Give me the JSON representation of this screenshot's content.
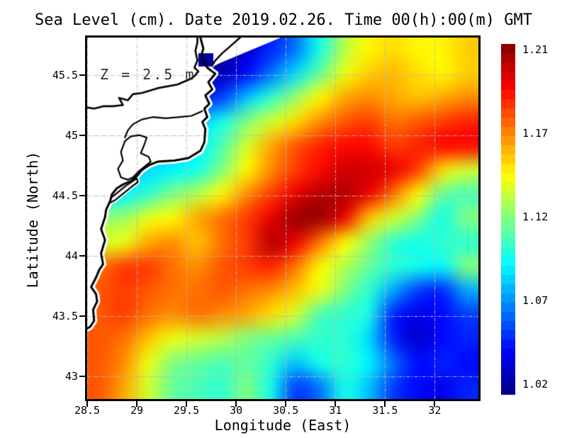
{
  "title": "Sea Level (cm). Date 2019.02.26. Time 00(h):00(m) GMT",
  "annotation": "Z = 2.5 m",
  "axes": {
    "x": {
      "label": "Longitude (East)",
      "ticks": [
        {
          "label": "28.5",
          "value": 28.5
        },
        {
          "label": "29",
          "value": 29
        },
        {
          "label": "29.5",
          "value": 29.5
        },
        {
          "label": "30",
          "value": 30
        },
        {
          "label": "30.5",
          "value": 30.5
        },
        {
          "label": "31",
          "value": 31
        },
        {
          "label": "31.5",
          "value": 31.5
        },
        {
          "label": "32",
          "value": 32
        }
      ]
    },
    "y": {
      "label": "Latitude (North)",
      "ticks": [
        {
          "label": "45.5",
          "value": 45.5
        },
        {
          "label": "45",
          "value": 45
        },
        {
          "label": "44.5",
          "value": 44.5
        },
        {
          "label": "44",
          "value": 44
        },
        {
          "label": "43.5",
          "value": 43.5
        },
        {
          "label": "43",
          "value": 43
        }
      ]
    }
  },
  "colorbar": {
    "min": 1.02,
    "max": 1.21,
    "segments": 38,
    "ticks": [
      {
        "label": "1.21",
        "value": 1.21
      },
      {
        "label": "1.17",
        "value": 1.17
      },
      {
        "label": "1.12",
        "value": 1.12
      },
      {
        "label": "1.07",
        "value": 1.07
      },
      {
        "label": "1.02",
        "value": 1.02
      }
    ]
  },
  "colors": {
    "land": "#ffffff",
    "coastline": "#000000",
    "grid": "#b8b8b8",
    "border": "#000000",
    "river_mouth": "#0000a0",
    "annotation": "#303030"
  },
  "chart_data": {
    "type": "heatmap",
    "title": "Sea Level (cm). Date 2019.02.26. Time 00(h):00(m) GMT",
    "xlabel": "Longitude (East)",
    "ylabel": "Latitude (North)",
    "xlim": [
      28.5,
      32.44
    ],
    "ylim": [
      42.81,
      45.81
    ],
    "xticks": [
      28.5,
      29,
      29.5,
      30,
      30.5,
      31,
      31.5,
      32
    ],
    "yticks": [
      43,
      43.5,
      44,
      44.5,
      45,
      45.5
    ],
    "colormap": "jet",
    "value_range": [
      1.02,
      1.21
    ],
    "grid_lon": [
      28.5,
      28.763,
      29.025,
      29.288,
      29.551,
      29.813,
      30.076,
      30.339,
      30.601,
      30.864,
      31.127,
      31.389,
      31.652,
      31.915,
      32.177,
      32.44
    ],
    "grid_lat": [
      45.81,
      45.596,
      45.381,
      45.167,
      44.953,
      44.739,
      44.524,
      44.31,
      44.096,
      43.881,
      43.667,
      43.453,
      43.239,
      43.024,
      42.81
    ],
    "values": [
      [
        1.05,
        1.05,
        1.05,
        1.05,
        1.03,
        1.025,
        1.035,
        1.05,
        1.065,
        1.095,
        1.125,
        1.14,
        1.145,
        1.14,
        1.14,
        1.148
      ],
      [
        1.05,
        1.05,
        1.05,
        1.05,
        1.025,
        1.03,
        1.045,
        1.065,
        1.085,
        1.11,
        1.135,
        1.148,
        1.152,
        1.145,
        1.14,
        1.148
      ],
      [
        1.06,
        1.06,
        1.06,
        1.06,
        1.05,
        1.055,
        1.08,
        1.1,
        1.12,
        1.14,
        1.155,
        1.16,
        1.155,
        1.15,
        1.155,
        1.16
      ],
      [
        1.07,
        1.07,
        1.07,
        1.07,
        1.08,
        1.095,
        1.115,
        1.13,
        1.145,
        1.16,
        1.17,
        1.175,
        1.165,
        1.17,
        1.175,
        1.18
      ],
      [
        1.08,
        1.08,
        1.08,
        1.08,
        1.09,
        1.105,
        1.13,
        1.155,
        1.17,
        1.18,
        1.185,
        1.185,
        1.175,
        1.18,
        1.185,
        1.185
      ],
      [
        1.085,
        1.085,
        1.085,
        1.09,
        1.095,
        1.115,
        1.14,
        1.16,
        1.175,
        1.185,
        1.195,
        1.195,
        1.19,
        1.175,
        1.145,
        1.13
      ],
      [
        1.09,
        1.09,
        1.1,
        1.115,
        1.125,
        1.14,
        1.16,
        1.175,
        1.19,
        1.2,
        1.2,
        1.19,
        1.165,
        1.14,
        1.11,
        1.105
      ],
      [
        1.12,
        1.12,
        1.135,
        1.14,
        1.155,
        1.165,
        1.175,
        1.19,
        1.205,
        1.205,
        1.19,
        1.15,
        1.13,
        1.115,
        1.095,
        1.115
      ],
      [
        1.13,
        1.135,
        1.155,
        1.16,
        1.15,
        1.165,
        1.175,
        1.2,
        1.19,
        1.165,
        1.14,
        1.12,
        1.1,
        1.095,
        1.1,
        1.1
      ],
      [
        1.165,
        1.175,
        1.175,
        1.165,
        1.16,
        1.17,
        1.175,
        1.18,
        1.165,
        1.14,
        1.125,
        1.11,
        1.1,
        1.095,
        1.09,
        1.115
      ],
      [
        1.17,
        1.175,
        1.17,
        1.165,
        1.165,
        1.17,
        1.165,
        1.16,
        1.15,
        1.135,
        1.115,
        1.1,
        1.075,
        1.055,
        1.05,
        1.075
      ],
      [
        1.17,
        1.175,
        1.165,
        1.16,
        1.165,
        1.16,
        1.155,
        1.145,
        1.13,
        1.105,
        1.1,
        1.095,
        1.05,
        1.04,
        1.045,
        1.055
      ],
      [
        1.17,
        1.165,
        1.15,
        1.135,
        1.13,
        1.125,
        1.115,
        1.11,
        1.105,
        1.1,
        1.1,
        1.085,
        1.05,
        1.035,
        1.045,
        1.05
      ],
      [
        1.17,
        1.16,
        1.135,
        1.115,
        1.11,
        1.105,
        1.11,
        1.1,
        1.08,
        1.095,
        1.1,
        1.09,
        1.065,
        1.045,
        1.05,
        1.045
      ],
      [
        1.17,
        1.155,
        1.13,
        1.11,
        1.105,
        1.1,
        1.115,
        1.095,
        1.055,
        1.065,
        1.095,
        1.08,
        1.055,
        1.045,
        1.04,
        1.05
      ]
    ],
    "coastlines": {
      "outer_coast": [
        [
          29.64,
          45.81
        ],
        [
          29.67,
          45.72
        ],
        [
          29.65,
          45.66
        ],
        [
          29.68,
          45.6
        ],
        [
          29.71,
          45.56
        ],
        [
          29.74,
          45.54
        ],
        [
          29.79,
          45.51
        ],
        [
          29.72,
          45.44
        ],
        [
          29.76,
          45.38
        ],
        [
          29.69,
          45.33
        ],
        [
          29.73,
          45.26
        ],
        [
          29.68,
          45.22
        ],
        [
          29.71,
          45.15
        ],
        [
          29.66,
          45.11
        ],
        [
          29.69,
          45.05
        ],
        [
          29.68,
          44.94
        ],
        [
          29.64,
          44.87
        ],
        [
          29.52,
          44.81
        ],
        [
          29.38,
          44.79
        ],
        [
          29.21,
          44.78
        ],
        [
          29.12,
          44.75
        ],
        [
          29.05,
          44.71
        ],
        [
          29.0,
          44.66
        ],
        [
          28.94,
          44.62
        ],
        [
          28.86,
          44.59
        ],
        [
          28.8,
          44.56
        ],
        [
          28.75,
          44.51
        ],
        [
          28.73,
          44.45
        ],
        [
          28.69,
          44.38
        ],
        [
          28.68,
          44.32
        ],
        [
          28.64,
          44.22
        ],
        [
          28.68,
          44.13
        ],
        [
          28.64,
          44.02
        ],
        [
          28.66,
          43.93
        ],
        [
          28.62,
          43.88
        ],
        [
          28.59,
          43.82
        ],
        [
          28.54,
          43.74
        ],
        [
          28.59,
          43.68
        ],
        [
          28.6,
          43.62
        ],
        [
          28.56,
          43.55
        ],
        [
          28.57,
          43.46
        ],
        [
          28.53,
          43.41
        ],
        [
          28.49,
          43.39
        ]
      ],
      "danube_river": [
        [
          29.61,
          45.81
        ],
        [
          29.61,
          45.77
        ],
        [
          29.59,
          45.7
        ],
        [
          29.61,
          45.62
        ],
        [
          29.58,
          45.56
        ],
        [
          29.62,
          45.53
        ],
        [
          29.58,
          45.49
        ],
        [
          29.55,
          45.47
        ],
        [
          29.41,
          45.42
        ],
        [
          29.21,
          45.39
        ],
        [
          29.05,
          45.35
        ],
        [
          28.96,
          45.34
        ],
        [
          28.91,
          45.29
        ],
        [
          28.82,
          45.31
        ],
        [
          28.86,
          45.25
        ],
        [
          28.76,
          45.24
        ],
        [
          28.66,
          45.24
        ],
        [
          28.57,
          45.22
        ],
        [
          28.5,
          45.23
        ]
      ],
      "north_spit": [
        [
          30.04,
          45.81
        ],
        [
          29.93,
          45.73
        ],
        [
          29.86,
          45.68
        ],
        [
          29.79,
          45.62
        ],
        [
          29.76,
          45.58
        ]
      ],
      "lagoon_razelm": [
        [
          29.66,
          45.2
        ],
        [
          29.55,
          45.16
        ],
        [
          29.43,
          45.15
        ],
        [
          29.29,
          45.14
        ],
        [
          29.16,
          45.15
        ],
        [
          29.05,
          45.13
        ],
        [
          28.96,
          45.09
        ],
        [
          28.91,
          45.04
        ],
        [
          28.88,
          44.98
        ]
      ],
      "lagoon_south": [
        [
          28.84,
          44.65
        ],
        [
          28.81,
          44.72
        ],
        [
          28.86,
          44.79
        ],
        [
          28.84,
          44.86
        ],
        [
          28.88,
          44.95
        ],
        [
          28.94,
          44.99
        ],
        [
          29.03,
          45.0
        ],
        [
          29.1,
          44.98
        ],
        [
          29.07,
          44.91
        ],
        [
          29.04,
          44.85
        ],
        [
          29.12,
          44.82
        ],
        [
          29.14,
          44.78
        ],
        [
          29.08,
          44.74
        ],
        [
          29.02,
          44.7
        ],
        [
          28.96,
          44.65
        ],
        [
          28.91,
          44.63
        ]
      ],
      "coastal_spit": [
        [
          29.0,
          44.64
        ],
        [
          28.89,
          44.58
        ],
        [
          28.8,
          44.52
        ],
        [
          28.74,
          44.48
        ],
        [
          28.73,
          44.44
        ],
        [
          28.78,
          44.46
        ],
        [
          28.87,
          44.52
        ],
        [
          28.96,
          44.58
        ],
        [
          29.01,
          44.61
        ]
      ]
    },
    "delta_shoal": [
      [
        29.64,
        45.81
      ],
      [
        30.45,
        45.81
      ],
      [
        29.84,
        45.6
      ],
      [
        29.72,
        45.55
      ]
    ],
    "river_mouth_patch": {
      "lon": [
        29.62,
        29.77
      ],
      "lat": [
        45.57,
        45.68
      ],
      "value": 1.02
    }
  }
}
